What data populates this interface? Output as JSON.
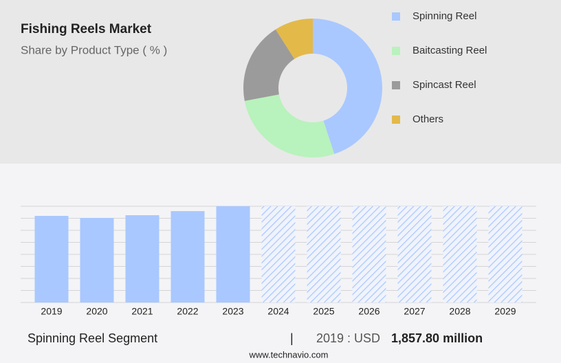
{
  "header": {
    "title": "Fishing Reels Market",
    "subtitle": "Share by Product Type ( % )"
  },
  "chart_data": [
    {
      "type": "donut",
      "series": [
        {
          "name": "Spinning Reel",
          "color": "#a9c8ff",
          "value": 45
        },
        {
          "name": "Baitcasting Reel",
          "color": "#b8f2bc",
          "value": 27
        },
        {
          "name": "Spincast Reel",
          "color": "#9b9b9b",
          "value": 19
        },
        {
          "name": "Others",
          "color": "#e3b94a",
          "value": 9
        }
      ]
    },
    {
      "type": "bar",
      "color": "#a9c8ff",
      "categories": [
        "2019",
        "2020",
        "2021",
        "2022",
        "2023",
        "2024",
        "2025",
        "2026",
        "2027",
        "2028",
        "2029"
      ],
      "values": [
        1857.8,
        1814,
        1872,
        1960,
        2064,
        null,
        null,
        null,
        null,
        null,
        null
      ],
      "ylim": [
        0,
        2064
      ],
      "grid": true
    }
  ],
  "footer": {
    "segment": "Spinning Reel Segment",
    "separator": "|",
    "year_label": "2019 : USD",
    "value": "1,857.80 million",
    "source": "www.technavio.com"
  }
}
